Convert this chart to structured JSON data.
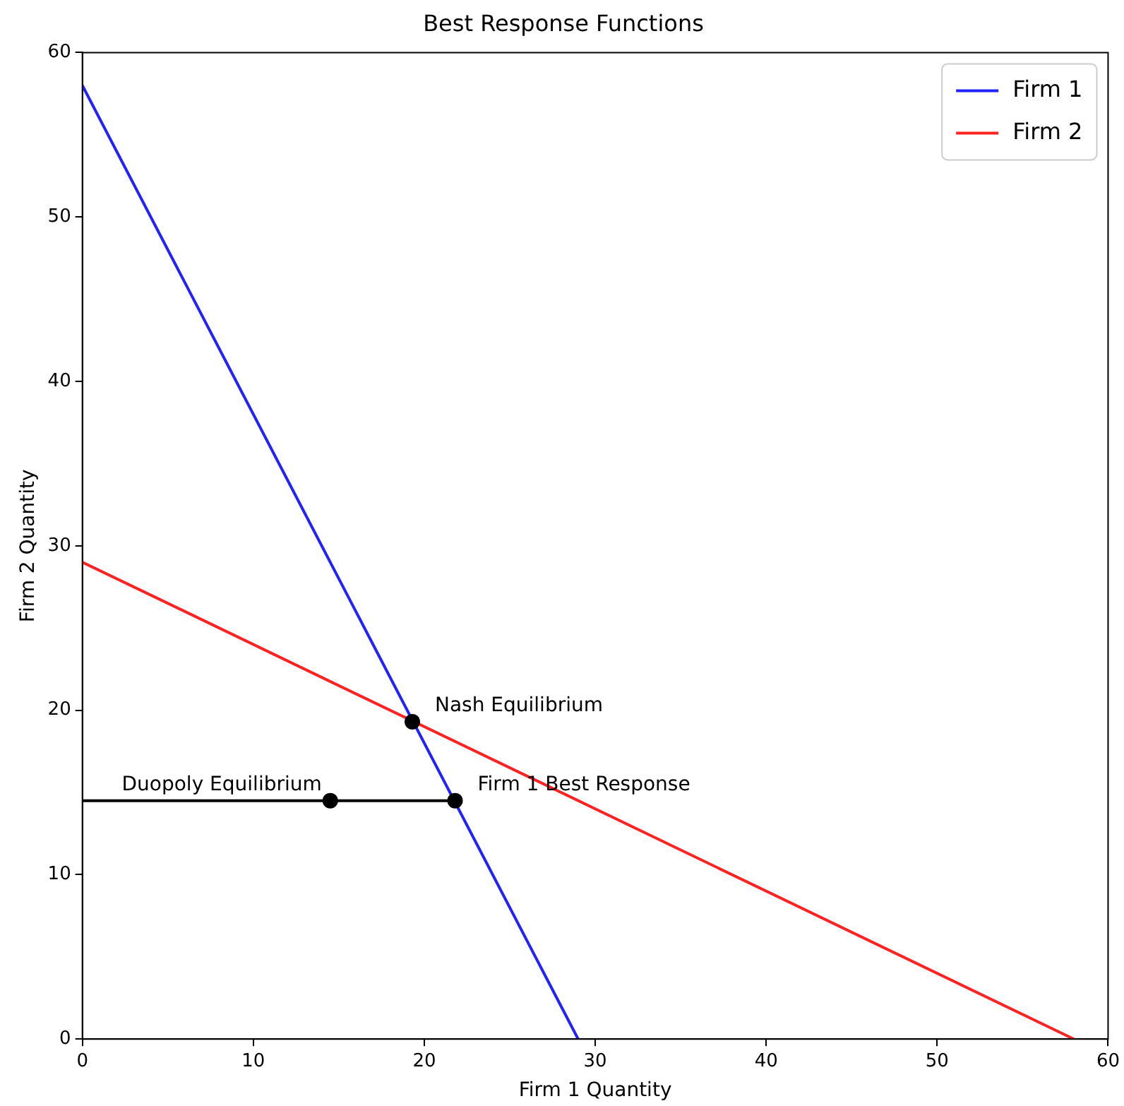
{
  "chart_data": {
    "type": "line",
    "title": "Best Response Functions",
    "xlabel": "Firm 1 Quantity",
    "ylabel": "Firm 2 Quantity",
    "xlim": [
      0,
      60
    ],
    "ylim": [
      0,
      60
    ],
    "xticks": [
      0,
      10,
      20,
      30,
      40,
      50,
      60
    ],
    "yticks": [
      0,
      10,
      20,
      30,
      40,
      50,
      60
    ],
    "grid": false,
    "legend": "top right",
    "marker": "none",
    "line_style": "solid",
    "series": [
      {
        "name": "Firm 1",
        "color": "#2222ff",
        "x": [
          0,
          29
        ],
        "values": [
          58,
          0
        ]
      },
      {
        "name": "Firm 2",
        "color": "#ff2222",
        "x": [
          0,
          58
        ],
        "values": [
          29,
          0
        ]
      },
      {
        "color": "#000000",
        "x": [
          0,
          21.75
        ],
        "values": [
          14.5,
          14.5
        ]
      },
      {
        "type": "scatter",
        "marker": "circle",
        "color": "#000000",
        "x": [
          19.3,
          14.5,
          21.8
        ],
        "values": [
          19.3,
          14.5,
          14.5
        ]
      }
    ],
    "annotations": [
      {
        "text": "Nash Equilibrium",
        "x": 19.3,
        "y": 19.3
      },
      {
        "text": "Firm 1 Best Response",
        "x": 21.8,
        "y": 14.5
      },
      {
        "text": "Duopoly Equilibrium",
        "x": 14.5,
        "y": 14.5
      }
    ]
  }
}
